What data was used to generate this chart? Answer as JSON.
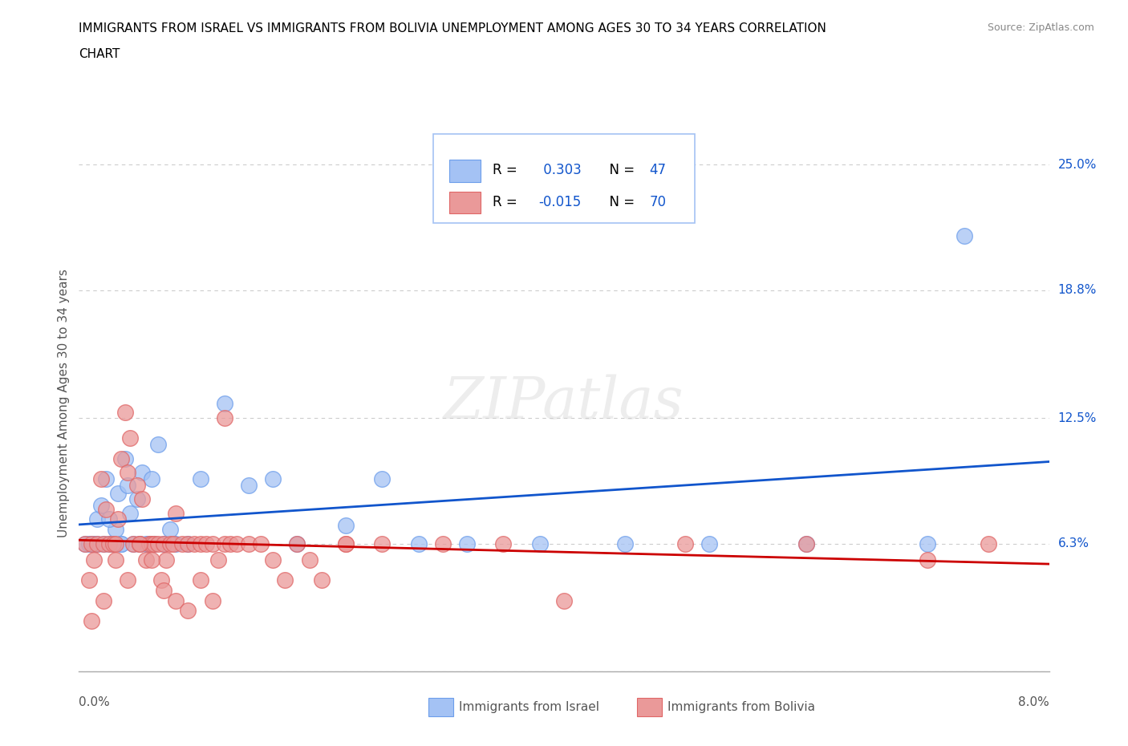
{
  "title_line1": "IMMIGRANTS FROM ISRAEL VS IMMIGRANTS FROM BOLIVIA UNEMPLOYMENT AMONG AGES 30 TO 34 YEARS CORRELATION",
  "title_line2": "CHART",
  "source": "Source: ZipAtlas.com",
  "ylabel": "Unemployment Among Ages 30 to 34 years",
  "xlim": [
    0.0,
    8.0
  ],
  "ylim": [
    0.0,
    26.5
  ],
  "ytick_vals": [
    0.0,
    6.3,
    12.5,
    18.8,
    25.0
  ],
  "ytick_labels": [
    "",
    "6.3%",
    "12.5%",
    "18.8%",
    "25.0%"
  ],
  "israel_R": "0.303",
  "israel_N": "47",
  "bolivia_R": "-0.015",
  "bolivia_N": "70",
  "israel_scatter_color": "#a4c2f4",
  "bolivia_scatter_color": "#ea9999",
  "israel_edge_color": "#6d9eeb",
  "bolivia_edge_color": "#e06666",
  "israel_line_color": "#1155cc",
  "bolivia_line_color": "#cc0000",
  "legend_text_color": "#1155cc",
  "watermark": "ZIPatlas",
  "legend_israel": "Immigrants from Israel",
  "legend_bolivia": "Immigrants from Bolivia",
  "legend_border_color": "#a4c2f4",
  "israel_x": [
    0.05,
    0.08,
    0.1,
    0.12,
    0.15,
    0.18,
    0.2,
    0.22,
    0.25,
    0.28,
    0.3,
    0.32,
    0.35,
    0.38,
    0.4,
    0.42,
    0.45,
    0.48,
    0.5,
    0.52,
    0.55,
    0.58,
    0.6,
    0.62,
    0.65,
    0.7,
    0.75,
    0.8,
    0.9,
    1.0,
    1.2,
    1.4,
    1.6,
    1.8,
    2.2,
    2.5,
    2.8,
    3.2,
    3.8,
    4.5,
    5.2,
    6.0,
    7.0,
    0.15,
    0.25,
    0.35,
    7.3
  ],
  "israel_y": [
    6.3,
    6.3,
    6.3,
    6.3,
    7.5,
    8.2,
    6.3,
    9.5,
    6.3,
    6.3,
    7.0,
    8.8,
    6.3,
    10.5,
    9.2,
    7.8,
    6.3,
    8.5,
    6.3,
    9.8,
    6.3,
    6.3,
    9.5,
    6.3,
    11.2,
    6.3,
    7.0,
    6.3,
    6.3,
    9.5,
    13.2,
    9.2,
    9.5,
    6.3,
    7.2,
    9.5,
    6.3,
    6.3,
    6.3,
    6.3,
    6.3,
    6.3,
    6.3,
    6.3,
    7.5,
    6.3,
    21.5
  ],
  "bolivia_x": [
    0.05,
    0.08,
    0.1,
    0.12,
    0.15,
    0.18,
    0.2,
    0.22,
    0.25,
    0.28,
    0.3,
    0.32,
    0.35,
    0.38,
    0.4,
    0.42,
    0.45,
    0.48,
    0.5,
    0.52,
    0.55,
    0.58,
    0.6,
    0.62,
    0.65,
    0.68,
    0.7,
    0.72,
    0.75,
    0.78,
    0.8,
    0.85,
    0.9,
    0.95,
    1.0,
    1.05,
    1.1,
    1.15,
    1.2,
    1.25,
    1.3,
    1.4,
    1.5,
    1.6,
    1.7,
    1.8,
    1.9,
    2.0,
    2.2,
    2.5,
    3.0,
    3.5,
    4.0,
    5.0,
    6.0,
    7.0,
    7.5,
    0.1,
    0.2,
    0.3,
    0.4,
    0.5,
    0.6,
    0.7,
    0.8,
    0.9,
    1.0,
    1.1,
    1.2,
    2.2
  ],
  "bolivia_y": [
    6.3,
    4.5,
    6.3,
    5.5,
    6.3,
    9.5,
    6.3,
    8.0,
    6.3,
    6.3,
    6.3,
    7.5,
    10.5,
    12.8,
    9.8,
    11.5,
    6.3,
    9.2,
    6.3,
    8.5,
    5.5,
    6.3,
    6.3,
    6.3,
    6.3,
    4.5,
    6.3,
    5.5,
    6.3,
    6.3,
    7.8,
    6.3,
    6.3,
    6.3,
    6.3,
    6.3,
    6.3,
    5.5,
    6.3,
    6.3,
    6.3,
    6.3,
    6.3,
    5.5,
    4.5,
    6.3,
    5.5,
    4.5,
    6.3,
    6.3,
    6.3,
    6.3,
    3.5,
    6.3,
    6.3,
    5.5,
    6.3,
    2.5,
    3.5,
    5.5,
    4.5,
    6.3,
    5.5,
    4.0,
    3.5,
    3.0,
    4.5,
    3.5,
    12.5,
    6.3
  ]
}
